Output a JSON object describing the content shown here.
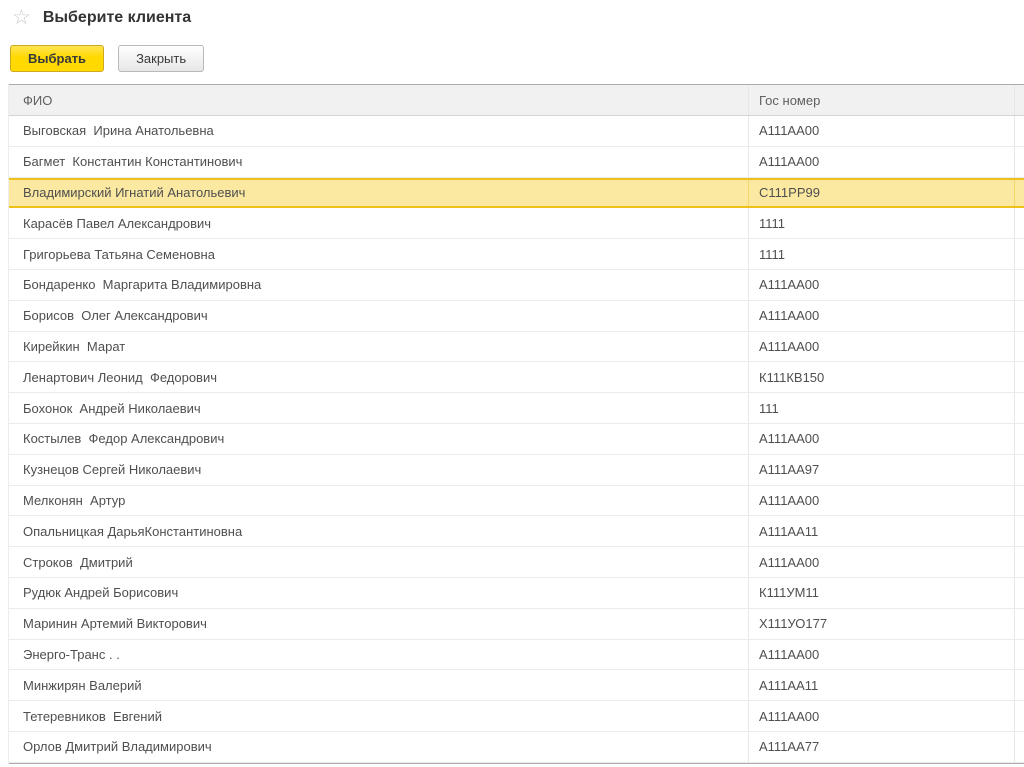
{
  "window": {
    "title": "Выберите клиента"
  },
  "toolbar": {
    "select_label": "Выбрать",
    "close_label": "Закрыть"
  },
  "icons": {
    "favorite_star": "☆"
  },
  "colors": {
    "accent_yellow": "#ffd900",
    "selected_row_bg": "#fbe9a2",
    "selected_row_border": "#edc01c",
    "header_bg": "#f1f1f1",
    "row_text": "#4f4f4f"
  },
  "table": {
    "columns": [
      "ФИО",
      "Гос номер"
    ],
    "selected_index": 2,
    "rows": [
      {
        "name": "Выговская  Ирина Анатольевна",
        "plate": "А111АА00"
      },
      {
        "name": "Багмет  Константин Константинович",
        "plate": "А111АА00"
      },
      {
        "name": "Владимирский Игнатий Анатольевич",
        "plate": "С111РР99"
      },
      {
        "name": "Карасёв Павел Александрович",
        "plate": "1111"
      },
      {
        "name": "Григорьева Татьяна Семеновна",
        "plate": "1111"
      },
      {
        "name": "Бондаренко  Маргарита Владимировна",
        "plate": "А111АА00"
      },
      {
        "name": "Борисов  Олег Александрович",
        "plate": "А111АА00"
      },
      {
        "name": "Кирейкин  Марат",
        "plate": "А111АА00"
      },
      {
        "name": "Ленартович Леонид  Федорович",
        "plate": "К111КВ150"
      },
      {
        "name": "Бохонок  Андрей Николаевич",
        "plate": "111"
      },
      {
        "name": "Костылев  Федор Александрович",
        "plate": "А111АА00"
      },
      {
        "name": "Кузнецов Сергей Николаевич",
        "plate": "А111АА97"
      },
      {
        "name": "Мелконян  Артур",
        "plate": "А111АА00"
      },
      {
        "name": "Опальницкая ДарьяКонстантиновна",
        "plate": "А111АА11"
      },
      {
        "name": "Строков  Дмитрий",
        "plate": "А111АА00"
      },
      {
        "name": "Рудюк Андрей Борисович",
        "plate": "К111УМ11"
      },
      {
        "name": "Маринин Артемий Викторович",
        "plate": "Х111УО177"
      },
      {
        "name": "Энерго-Транс . .",
        "plate": "А111АА00"
      },
      {
        "name": "Минжирян Валерий",
        "plate": "А111АА11"
      },
      {
        "name": "Тетеревников  Евгений",
        "plate": "А111АА00"
      },
      {
        "name": "Орлов Дмитрий Владимирович",
        "plate": "А111АА77"
      }
    ]
  }
}
